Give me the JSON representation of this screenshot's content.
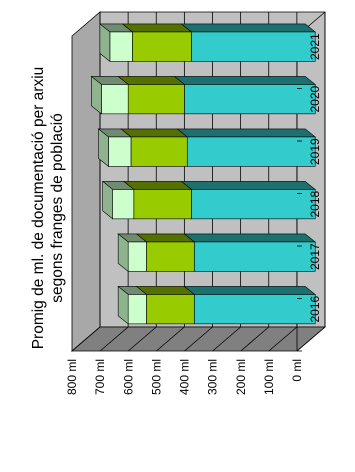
{
  "chart_data": {
    "type": "bar",
    "orientation": "rotated 90 degrees counter-clockwise (horizontal bars)",
    "stacked": true,
    "three_d": true,
    "ylabel_lines": [
      "Promig de ml. de documentació per arxiu",
      "segons franges de població"
    ],
    "categories": [
      "2016",
      "2017",
      "2018",
      "2019",
      "2020",
      "2021"
    ],
    "series": [
      {
        "color": "#33cccc",
        "values": [
          430,
          430,
          440,
          455,
          465,
          440
        ]
      },
      {
        "color": "#99cc00",
        "values": [
          170,
          170,
          205,
          200,
          200,
          210
        ]
      },
      {
        "color": "#ccffcc",
        "values": [
          65,
          65,
          75,
          80,
          95,
          80
        ]
      }
    ],
    "axis_ticks": [
      "0 ml",
      "100 ml",
      "200 ml",
      "300 ml",
      "400 ml",
      "500 ml",
      "600 ml",
      "700 ml",
      "800 ml"
    ],
    "ylim": [
      0,
      800
    ],
    "grid": true,
    "legend": "none",
    "wall_color": "#c0c0c0",
    "floor_color": "#808080"
  }
}
